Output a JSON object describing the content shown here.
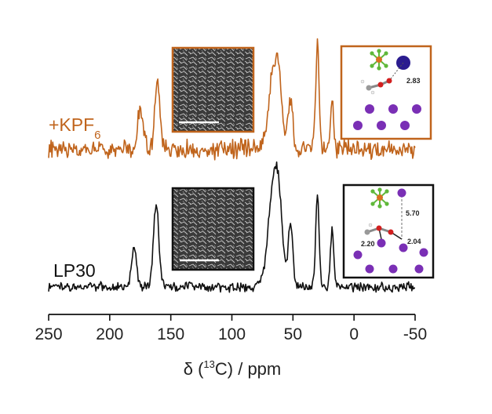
{
  "chart_data": {
    "type": "line",
    "xlabel_parts": {
      "prefix": "δ (",
      "sup": "13",
      "suffix": "C) / ppm"
    },
    "x_ticks": [
      250,
      200,
      150,
      100,
      50,
      0,
      -50
    ],
    "xlim": [
      250,
      -50
    ],
    "x_reversed": true,
    "grid": false,
    "series": [
      {
        "name": "LP30",
        "color": "#111111",
        "peaks": [
          {
            "x": 180,
            "height": 0.45,
            "width": 2.0
          },
          {
            "x": 162,
            "height": 0.95,
            "width": 2.2
          },
          {
            "x": 67,
            "height": 0.88,
            "width": 4.0
          },
          {
            "x": 62,
            "height": 0.9,
            "width": 3.5
          },
          {
            "x": 52,
            "height": 0.72,
            "width": 1.8
          },
          {
            "x": 30,
            "height": 1.08,
            "width": 1.4
          },
          {
            "x": 18,
            "height": 0.65,
            "width": 1.4
          }
        ]
      },
      {
        "name": "+KPF6",
        "label_main": "+KPF",
        "label_sub": "6",
        "color": "#c0641c",
        "peaks": [
          {
            "x": 175,
            "height": 0.42,
            "width": 2.5
          },
          {
            "x": 161,
            "height": 0.7,
            "width": 2.0
          },
          {
            "x": 67,
            "height": 0.65,
            "width": 3.5
          },
          {
            "x": 62,
            "height": 0.72,
            "width": 3.0
          },
          {
            "x": 52,
            "height": 0.55,
            "width": 1.8
          },
          {
            "x": 30,
            "height": 1.15,
            "width": 1.4
          },
          {
            "x": 18,
            "height": 0.5,
            "width": 1.4
          }
        ]
      }
    ],
    "insets": {
      "kpf_structure": {
        "distances": [
          "2.83"
        ]
      },
      "lp30_structure": {
        "distances": [
          "5.70",
          "2.20",
          "2.04"
        ]
      }
    },
    "colors": {
      "kpf_series": "#c0641c",
      "lp30_series": "#111111",
      "sem_frame_kpf": "#c0641c",
      "sem_frame_lp30": "#111111",
      "k_ion": "#7a2fb5",
      "li_ion": "#2b1c8f",
      "oxygen": "#d21f1f",
      "fluorine": "#5fb83a",
      "phosphorus": "#d86f20"
    }
  }
}
